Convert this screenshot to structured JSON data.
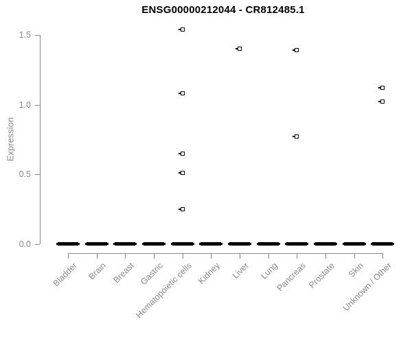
{
  "chart_data": {
    "type": "scatter",
    "subtype": "strip-plot",
    "title": "ENSG00000212044 - CR812485.1",
    "xlabel": "",
    "ylabel": "Expression",
    "ylim": [
      0,
      1.54
    ],
    "yticks": [
      0,
      0.5,
      1.0,
      1.5
    ],
    "ytick_labels": [
      "0.0",
      "0.5",
      "1.0",
      "1.5"
    ],
    "grid": "off",
    "legend": "none",
    "marker": "open-square",
    "categories": [
      "Bladder",
      "Brain",
      "Breast",
      "Gastric",
      "Hematopoietic cells",
      "Kidney",
      "Liver",
      "Lung",
      "Pancreas",
      "Prostate",
      "Skin",
      "Unknown / Other"
    ],
    "series": [
      {
        "category": "Bladder",
        "zero_cluster": true,
        "nonzero_values": []
      },
      {
        "category": "Brain",
        "zero_cluster": true,
        "nonzero_values": []
      },
      {
        "category": "Breast",
        "zero_cluster": true,
        "nonzero_values": []
      },
      {
        "category": "Gastric",
        "zero_cluster": true,
        "nonzero_values": []
      },
      {
        "category": "Hematopoietic cells",
        "zero_cluster": true,
        "nonzero_values": [
          1.54,
          1.08,
          0.65,
          0.51,
          0.25
        ]
      },
      {
        "category": "Kidney",
        "zero_cluster": true,
        "nonzero_values": []
      },
      {
        "category": "Liver",
        "zero_cluster": true,
        "nonzero_values": [
          1.4
        ]
      },
      {
        "category": "Lung",
        "zero_cluster": true,
        "nonzero_values": []
      },
      {
        "category": "Pancreas",
        "zero_cluster": true,
        "nonzero_values": [
          1.39,
          0.77
        ]
      },
      {
        "category": "Prostate",
        "zero_cluster": true,
        "nonzero_values": []
      },
      {
        "category": "Skin",
        "zero_cluster": true,
        "nonzero_values": []
      },
      {
        "category": "Unknown / Other",
        "zero_cluster": true,
        "nonzero_values": [
          1.12,
          1.02
        ]
      }
    ],
    "baseline_note": "every category shows a dense cluster of overlapping points at expression 0 rendered as a thick black dash",
    "colors": {
      "point": "#000000",
      "axis": "#888888",
      "tick_label": "#888888",
      "title": "#000000",
      "background": "#ffffff"
    }
  }
}
